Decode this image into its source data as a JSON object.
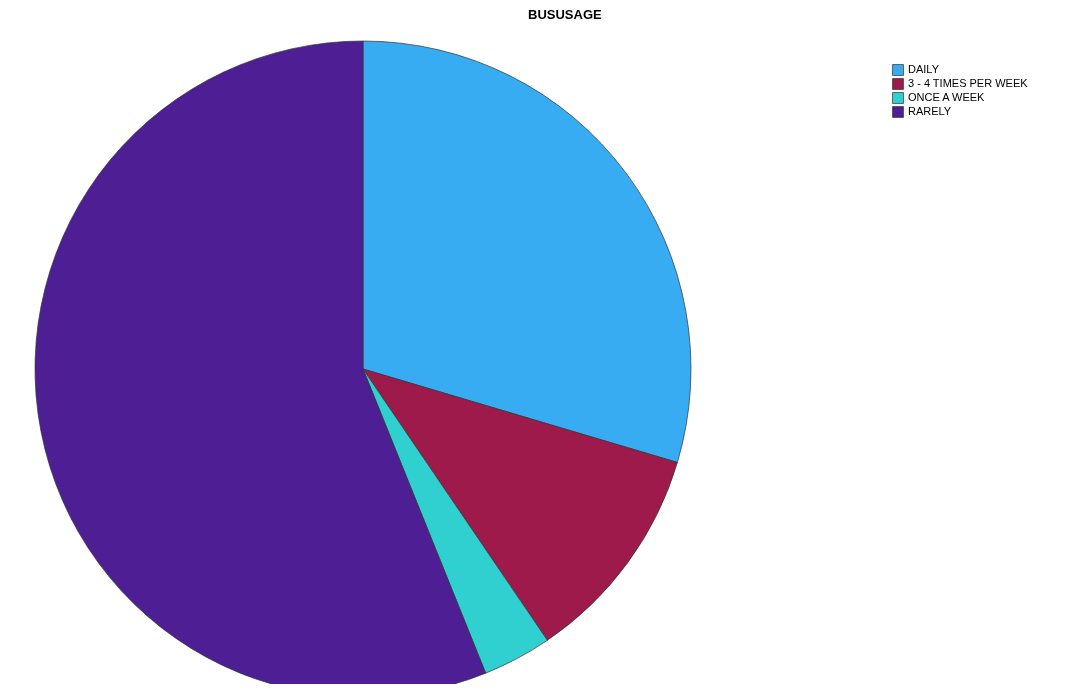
{
  "chart_data": {
    "type": "pie",
    "title": "BUSUSAGE",
    "categories": [
      "DAILY",
      "3 - 4 TIMES PER WEEK",
      "ONCE A WEEK",
      "RARELY"
    ],
    "values": [
      29.6,
      10.9,
      3.4,
      56.1
    ],
    "colors": [
      "#37acf2",
      "#9e1a4a",
      "#2fd0cf",
      "#4e1f94"
    ],
    "legend": "top right"
  }
}
